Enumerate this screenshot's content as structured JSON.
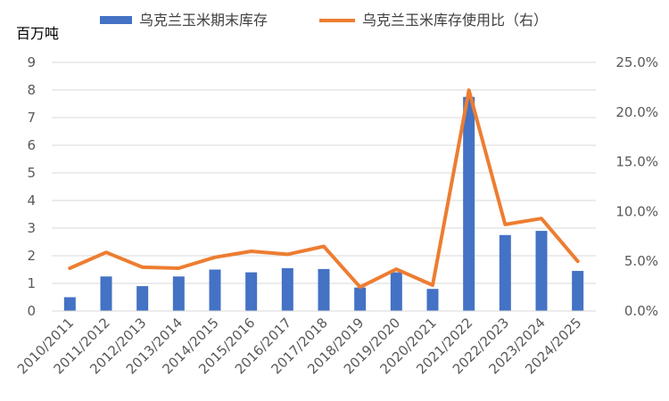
{
  "chart_data": {
    "type": "bar",
    "ylabel": "百万吨",
    "categories": [
      "2010/2011",
      "2011/2012",
      "2012/2013",
      "2013/2014",
      "2014/2015",
      "2015/2016",
      "2016/2017",
      "2017/2018",
      "2018/2019",
      "2019/2020",
      "2020/2021",
      "2021/2022",
      "2022/2023",
      "2023/2024",
      "2024/2025"
    ],
    "series": [
      {
        "name": "乌克兰玉米期末库存",
        "type": "bar",
        "axis": "left",
        "color": "#4472c4",
        "values": [
          0.5,
          1.25,
          0.9,
          1.25,
          1.5,
          1.4,
          1.55,
          1.52,
          0.85,
          1.4,
          0.8,
          7.75,
          2.75,
          2.9,
          1.45
        ]
      },
      {
        "name": "乌克兰玉米库存使用比（右）",
        "type": "line",
        "axis": "right",
        "color": "#ed7d31",
        "values": [
          4.3,
          5.9,
          4.4,
          4.3,
          5.4,
          6.0,
          5.7,
          6.5,
          2.4,
          4.2,
          2.6,
          22.2,
          8.7,
          9.3,
          5.0
        ]
      }
    ],
    "y_left": {
      "min": 0,
      "max": 9,
      "step": 1,
      "ticks": [
        "0",
        "1",
        "2",
        "3",
        "4",
        "5",
        "6",
        "7",
        "8",
        "9"
      ]
    },
    "y_right": {
      "min": 0,
      "max": 25,
      "step": 5,
      "ticks": [
        "0.0%",
        "5.0%",
        "10.0%",
        "15.0%",
        "20.0%",
        "25.0%"
      ]
    },
    "grid": true,
    "legend": "top"
  }
}
